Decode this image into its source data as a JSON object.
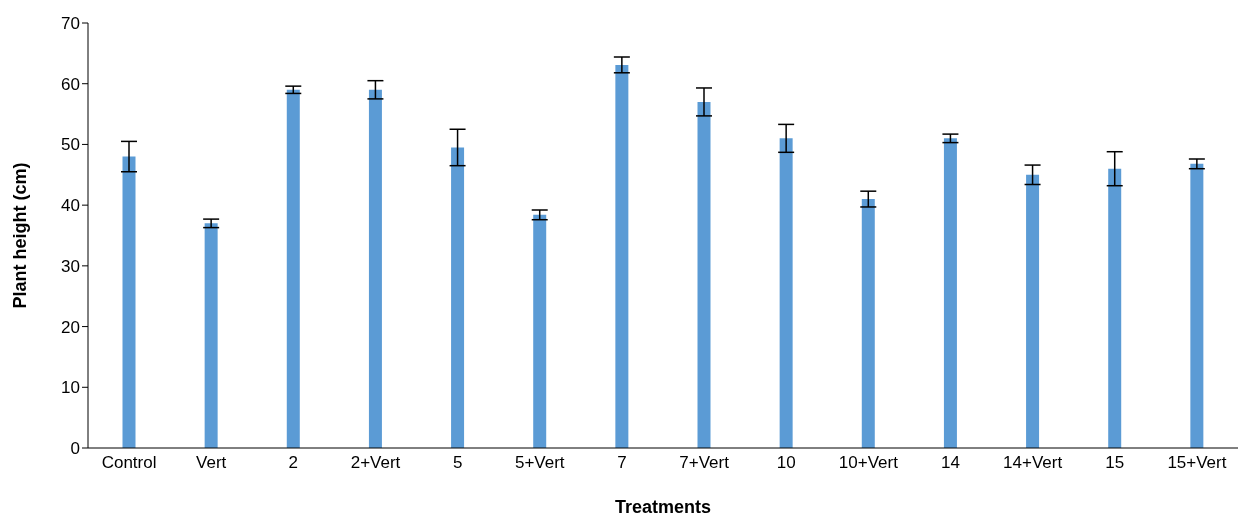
{
  "chart_data": {
    "type": "bar",
    "xlabel": "Treatments",
    "ylabel": "Plant height (cm)",
    "categories": [
      "Control",
      "Vert",
      "2",
      "2+Vert",
      "5",
      "5+Vert",
      "7",
      "7+Vert",
      "10",
      "10+Vert",
      "14",
      "14+Vert",
      "15",
      "15+Vert"
    ],
    "values": [
      48,
      37,
      59,
      59,
      49.5,
      38.4,
      63.1,
      57,
      51,
      41,
      51,
      45,
      46,
      46.8
    ],
    "errors": [
      2.5,
      0.7,
      0.6,
      1.5,
      3,
      0.8,
      1.3,
      2.3,
      2.3,
      1.3,
      0.7,
      1.6,
      2.8,
      0.8
    ],
    "color": "#5b9bd5",
    "ylim": [
      0,
      70
    ],
    "yticks": [
      0,
      10,
      20,
      30,
      40,
      50,
      60,
      70
    ],
    "grid": false
  }
}
